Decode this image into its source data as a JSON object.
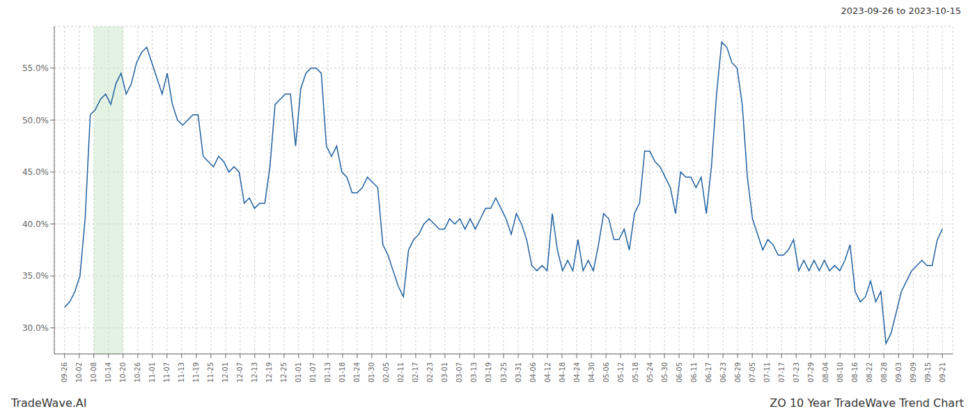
{
  "chart_data": {
    "type": "line",
    "title": "ZO 10 Year TradeWave Trend Chart",
    "subtitle": "2023-09-26 to 2023-10-15",
    "annotations": [
      "TradeWave.AI"
    ],
    "grid": true,
    "series": [
      {
        "color": "#2060a0",
        "x": [
          0,
          1,
          2,
          3,
          4,
          5,
          6,
          7,
          8,
          9,
          10,
          11,
          12,
          13,
          14,
          15,
          16,
          17,
          18,
          19,
          20,
          21,
          22,
          23,
          24,
          25,
          26,
          27,
          28,
          29,
          30,
          31,
          32,
          33,
          34,
          35,
          36,
          37,
          38,
          39,
          40,
          41,
          42,
          43,
          44,
          45,
          46,
          47,
          48,
          49,
          50,
          51,
          52,
          53,
          54,
          55,
          56,
          57,
          58,
          59,
          60,
          61,
          62,
          63,
          64,
          65,
          66,
          67,
          68,
          69,
          70,
          71,
          72,
          73,
          74,
          75,
          76,
          77,
          78,
          79,
          80,
          81,
          82,
          83,
          84,
          85,
          86,
          87,
          88,
          89,
          90,
          91,
          92,
          93,
          94,
          95,
          96,
          97,
          98,
          99,
          100,
          101,
          102,
          103,
          104,
          105,
          106,
          107,
          108,
          109,
          110,
          111,
          112,
          113,
          114,
          115,
          116,
          117,
          118,
          119,
          120,
          121,
          122,
          123,
          124,
          125,
          126,
          127,
          128,
          129,
          130,
          131,
          132,
          133,
          134,
          135,
          136,
          137,
          138,
          139,
          140,
          141,
          142,
          143,
          144,
          145,
          146,
          147,
          148,
          149,
          150,
          151,
          152,
          153,
          154,
          155,
          156,
          157,
          158,
          159,
          160,
          161,
          162,
          163,
          164,
          165,
          166,
          167,
          168,
          169,
          170,
          171
        ],
        "values": [
          32.0,
          32.5,
          33.5,
          35.0,
          40.5,
          50.5,
          51.0,
          52.0,
          52.5,
          51.5,
          53.5,
          54.5,
          52.5,
          53.5,
          55.5,
          56.5,
          57.0,
          55.5,
          54.0,
          52.5,
          54.5,
          51.5,
          50.0,
          49.5,
          50.0,
          50.5,
          50.5,
          46.5,
          46.0,
          45.5,
          46.5,
          46.0,
          45.0,
          45.5,
          45.0,
          42.0,
          42.5,
          41.5,
          42.0,
          42.0,
          45.5,
          51.5,
          52.0,
          52.5,
          52.5,
          47.5,
          53.0,
          54.5,
          55.0,
          55.0,
          54.5,
          47.5,
          46.5,
          47.5,
          45.0,
          44.5,
          43.0,
          43.0,
          43.5,
          44.5,
          44.0,
          43.5,
          38.0,
          37.0,
          35.5,
          34.0,
          33.0,
          37.5,
          38.5,
          39.0,
          40.0,
          40.5,
          40.0,
          39.5,
          39.5,
          40.5,
          40.0,
          40.5,
          39.5,
          40.5,
          39.5,
          40.5,
          41.5,
          41.5,
          42.5,
          41.5,
          40.5,
          39.0,
          41.0,
          40.0,
          38.5,
          36.0,
          35.5,
          36.0,
          35.5,
          41.0,
          37.5,
          35.5,
          36.5,
          35.5,
          38.5,
          35.5,
          36.5,
          35.5,
          38.0,
          41.0,
          40.5,
          38.5,
          38.5,
          39.5,
          37.5,
          41.0,
          42.0,
          47.0,
          47.0,
          46.0,
          45.5,
          44.5,
          43.5,
          41.0,
          45.0,
          44.5,
          44.5,
          43.5,
          44.5,
          41.0,
          45.5,
          52.5,
          57.5,
          57.0,
          55.5,
          55.0,
          51.5,
          44.5,
          40.5,
          39.0,
          37.5,
          38.5,
          38.0,
          37.0,
          37.0,
          37.5,
          38.5,
          35.5,
          36.5,
          35.5,
          36.5,
          35.5,
          36.5,
          35.5,
          36.0,
          35.5,
          36.5,
          38.0,
          33.5,
          32.5,
          33.0,
          34.5,
          32.5,
          33.5,
          28.5,
          29.5,
          31.5,
          33.5,
          34.5,
          35.5,
          36.0,
          36.5,
          36.0,
          36.0,
          38.5,
          39.5
        ]
      }
    ],
    "shaded": {
      "x": [
        5.7,
        11.4
      ],
      "color": "#c8e6c8"
    },
    "xlim": [
      -2,
      173
    ],
    "xticks": [
      {
        "value": 0,
        "label": "09-26"
      },
      {
        "value": 2.85,
        "label": "10-02"
      },
      {
        "value": 5.7,
        "label": "10-08"
      },
      {
        "value": 8.55,
        "label": "10-14"
      },
      {
        "value": 11.4,
        "label": "10-20"
      },
      {
        "value": 14.25,
        "label": "10-26"
      },
      {
        "value": 17.1,
        "label": "11-01"
      },
      {
        "value": 19.95,
        "label": "11-07"
      },
      {
        "value": 22.8,
        "label": "11-13"
      },
      {
        "value": 25.65,
        "label": "11-19"
      },
      {
        "value": 28.5,
        "label": "11-25"
      },
      {
        "value": 31.35,
        "label": "12-01"
      },
      {
        "value": 34.2,
        "label": "12-07"
      },
      {
        "value": 37.05,
        "label": "12-13"
      },
      {
        "value": 39.9,
        "label": "12-19"
      },
      {
        "value": 42.75,
        "label": "12-25"
      },
      {
        "value": 45.6,
        "label": "01-01"
      },
      {
        "value": 48.45,
        "label": "01-07"
      },
      {
        "value": 51.3,
        "label": "01-13"
      },
      {
        "value": 54.15,
        "label": "01-18"
      },
      {
        "value": 57,
        "label": "01-24"
      },
      {
        "value": 59.85,
        "label": "01-30"
      },
      {
        "value": 62.7,
        "label": "02-05"
      },
      {
        "value": 65.55,
        "label": "02-11"
      },
      {
        "value": 68.4,
        "label": "02-17"
      },
      {
        "value": 71.25,
        "label": "02-23"
      },
      {
        "value": 74.1,
        "label": "03-01"
      },
      {
        "value": 76.95,
        "label": "03-07"
      },
      {
        "value": 79.8,
        "label": "03-13"
      },
      {
        "value": 82.65,
        "label": "03-19"
      },
      {
        "value": 85.5,
        "label": "03-25"
      },
      {
        "value": 88.35,
        "label": "03-31"
      },
      {
        "value": 91.2,
        "label": "04-06"
      },
      {
        "value": 94.05,
        "label": "04-12"
      },
      {
        "value": 96.9,
        "label": "04-18"
      },
      {
        "value": 99.75,
        "label": "04-24"
      },
      {
        "value": 102.6,
        "label": "04-30"
      },
      {
        "value": 105.45,
        "label": "05-06"
      },
      {
        "value": 108.3,
        "label": "05-12"
      },
      {
        "value": 111.15,
        "label": "05-18"
      },
      {
        "value": 114,
        "label": "05-24"
      },
      {
        "value": 116.85,
        "label": "05-30"
      },
      {
        "value": 119.7,
        "label": "06-05"
      },
      {
        "value": 122.55,
        "label": "06-11"
      },
      {
        "value": 125.4,
        "label": "06-17"
      },
      {
        "value": 128.25,
        "label": "06-23"
      },
      {
        "value": 131.1,
        "label": "06-29"
      },
      {
        "value": 133.95,
        "label": "07-05"
      },
      {
        "value": 136.8,
        "label": "07-11"
      },
      {
        "value": 139.65,
        "label": "07-17"
      },
      {
        "value": 142.5,
        "label": "07-23"
      },
      {
        "value": 145.35,
        "label": "07-29"
      },
      {
        "value": 148.2,
        "label": "08-04"
      },
      {
        "value": 151.05,
        "label": "08-10"
      },
      {
        "value": 153.9,
        "label": "08-16"
      },
      {
        "value": 156.75,
        "label": "08-22"
      },
      {
        "value": 159.6,
        "label": "08-28"
      },
      {
        "value": 162.45,
        "label": "09-03"
      },
      {
        "value": 165.3,
        "label": "09-09"
      },
      {
        "value": 168.15,
        "label": "09-15"
      },
      {
        "value": 171,
        "label": "09-21"
      }
    ],
    "ylim": [
      27.5,
      59.0
    ],
    "yticks": [
      {
        "value": 30.0,
        "label": "30.0%"
      },
      {
        "value": 35.0,
        "label": "35.0%"
      },
      {
        "value": 40.0,
        "label": "40.0%"
      },
      {
        "value": 45.0,
        "label": "45.0%"
      },
      {
        "value": 50.0,
        "label": "50.0%"
      },
      {
        "value": 55.0,
        "label": "55.0%"
      }
    ]
  }
}
